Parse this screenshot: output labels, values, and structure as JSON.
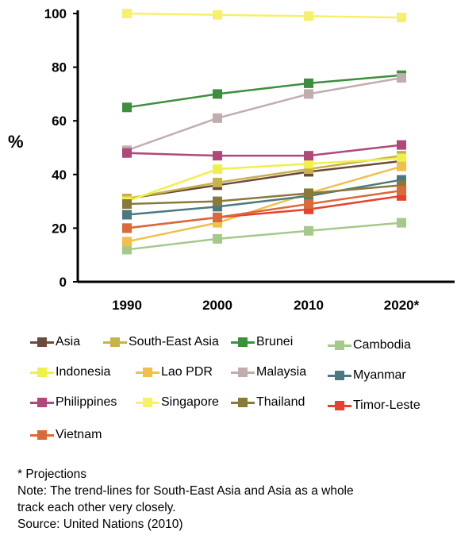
{
  "chart_data": {
    "type": "line",
    "ylabel": "%",
    "xlabel": "",
    "categories": [
      "1990",
      "2000",
      "2010",
      "2020*"
    ],
    "ylim": [
      0,
      100
    ],
    "yticks": [
      0,
      20,
      40,
      60,
      80,
      100
    ],
    "grid": false,
    "legend_position": "bottom",
    "series": [
      {
        "name": "Asia",
        "color": "#6b4c3b",
        "values": [
          31,
          36,
          41,
          45
        ]
      },
      {
        "name": "South-East Asia",
        "color": "#c9b24a",
        "values": [
          31,
          37,
          42,
          47
        ]
      },
      {
        "name": "Brunei",
        "color": "#3d8f3d",
        "values": [
          65,
          70,
          74,
          77
        ]
      },
      {
        "name": "Cambodia",
        "color": "#a4c98a",
        "values": [
          12,
          16,
          19,
          22
        ]
      },
      {
        "name": "Indonesia",
        "color": "#f0f04a",
        "values": [
          30,
          42,
          44,
          46
        ]
      },
      {
        "name": "Lao PDR",
        "color": "#f2c04a",
        "values": [
          15,
          22,
          33,
          43
        ]
      },
      {
        "name": "Malaysia",
        "color": "#c0aeae",
        "values": [
          49,
          61,
          70,
          76
        ]
      },
      {
        "name": "Myanmar",
        "color": "#4a7a80",
        "values": [
          25,
          28,
          32,
          38
        ]
      },
      {
        "name": "Philippines",
        "color": "#b0487a",
        "values": [
          48,
          47,
          47,
          51
        ]
      },
      {
        "name": "Singapore",
        "color": "#f7f06a",
        "values": [
          100,
          99.5,
          99,
          98.5
        ]
      },
      {
        "name": "Thailand",
        "color": "#8a7a3a",
        "values": [
          29,
          30,
          33,
          36
        ]
      },
      {
        "name": "Timor-Leste",
        "color": "#e8402e",
        "values": [
          20,
          24,
          27,
          32
        ]
      },
      {
        "name": "Vietnam",
        "color": "#d96a3a",
        "values": [
          20,
          24,
          29,
          34
        ]
      }
    ]
  },
  "notes": {
    "projections": "* Projections",
    "note_line1": "Note:  The trend-lines for South-East Asia and Asia as a whole",
    "note_line2": "track each other very closely.",
    "source": "Source: United Nations (2010)"
  }
}
